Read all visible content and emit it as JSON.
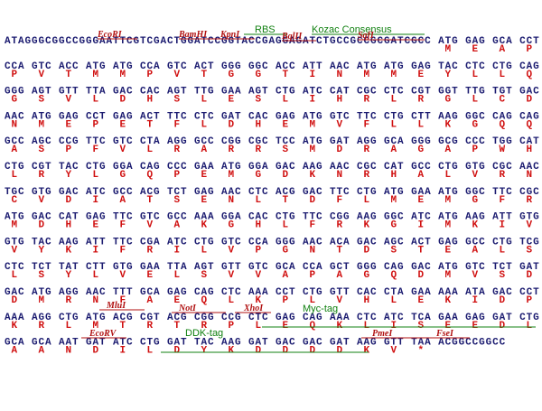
{
  "rows": [
    {
      "seq": "ATAGGGCGGCCGGGAATTCGTCGACTGGATCCGGTACCGAGGAGATCTGCCGCCGCGATCGCC ATG GAG GCA CCT",
      "aa": "MEAP"
    },
    {
      "seq": "CCA GTC ACC ATG ATG CCA GTC ACT GGG GGC ACC ATT AAC ATG ATG GAG TAC CTC CTG CAG",
      "aa": "PVTMMPVTGGTINMMEYLLQ"
    },
    {
      "seq": "GGG AGT GTT TTA GAC CAC AGT TTG GAA AGT CTG ATC CAT CGC CTC CGT GGT TTG TGT GAC",
      "aa": "GSVLDHSLESLIHRLRGLCD"
    },
    {
      "seq": "AAC ATG GAG CCT GAG ACT TTC CTC GAT CAC GAG ATG GTC TTC CTG CTT AAG GGC CAG CAG",
      "aa": "NMEPETFLDHEMVFLLKGQQ"
    },
    {
      "seq": "GCC AGC CCG TTC GTC CTA AGG GCC CGG CGC TCC ATG GAT AGG GCA GGG GCG CCC TGG CAT",
      "aa": "ASPFVLRARRSMDRAGAPWH"
    },
    {
      "seq": "CTG CGT TAC CTG GGA CAG CCC GAA ATG GGA GAC AAG AAC CGC CAT GCC CTG GTG CGC AAC",
      "aa": "LRYLGQPEMGDKNRHALVRN"
    },
    {
      "seq": "TGC GTG GAC ATC GCC ACG TCT GAG AAC CTC ACG GAC TTC CTG ATG GAA ATG GGC TTC CGC",
      "aa": "CVDIATSENLTDFLMEMGFR"
    },
    {
      "seq": "ATG GAC CAT GAG TTC GTC GCC AAA GGA CAC CTG TTC CGG AAG GGC ATC ATG AAG ATT GTG",
      "aa": "MDHEFVAKGHLFRKGIMKIV"
    },
    {
      "seq": "GTG TAC AAG ATT TTC CGA ATC CTG GTC CCA GGG AAC ACA GAC AGC ACT GAG GCC CTG TCG",
      "aa": "VYKIFRILVPGNTDSTEALS"
    },
    {
      "seq": "CTC TCT TAT CTT GTG GAA TTA AGT GTT GTC GCA CCA GCT GGG CAG GAC ATG GTC TCT GAT",
      "aa": "LSYLVELSVVAPAGQDMVSD"
    },
    {
      "seq": "GAC ATG AGG AAC TTT GCA GAG CAG CTC AAA CCT CTG GTT CAC CTA GAA AAA ATA GAC CCT",
      "aa": "DMRNFAEQLKPLVHLEKIDP"
    },
    {
      "seq": "AAA AGG CTG ATG ACG CGT ACG CGG CCG CTC GAG CAG AAA CTC ATC TCA GAA GAG GAT CTG",
      "aa": "KRLMTRTRPLEQKLISEEDL"
    },
    {
      "seq": "GCA GCA AAT GAT ATC CTG GAT TAC AAG GAT GAC GAC GAT AAG GTT TAA ACGGCCGGCC",
      "aa": "AANDILDYKDDDDKV*"
    }
  ],
  "annotations": [
    {
      "label": "EcoRI",
      "kind": "site"
    },
    {
      "label": "BamHI",
      "kind": "site"
    },
    {
      "label": "KpnI",
      "kind": "site"
    },
    {
      "label": "RBS",
      "kind": "feature"
    },
    {
      "label": "BglII",
      "kind": "site"
    },
    {
      "label": "Kozac Consensus",
      "kind": "feature"
    },
    {
      "label": "SgfI",
      "kind": "site"
    },
    {
      "label": "MluI",
      "kind": "site"
    },
    {
      "label": "NotI",
      "kind": "site"
    },
    {
      "label": "XhoI",
      "kind": "site"
    },
    {
      "label": "Myc-tag",
      "kind": "feature"
    },
    {
      "label": "EcoRV",
      "kind": "site"
    },
    {
      "label": "DDK-tag",
      "kind": "feature"
    },
    {
      "label": "PmeI",
      "kind": "site"
    },
    {
      "label": "FseI",
      "kind": "site"
    }
  ]
}
